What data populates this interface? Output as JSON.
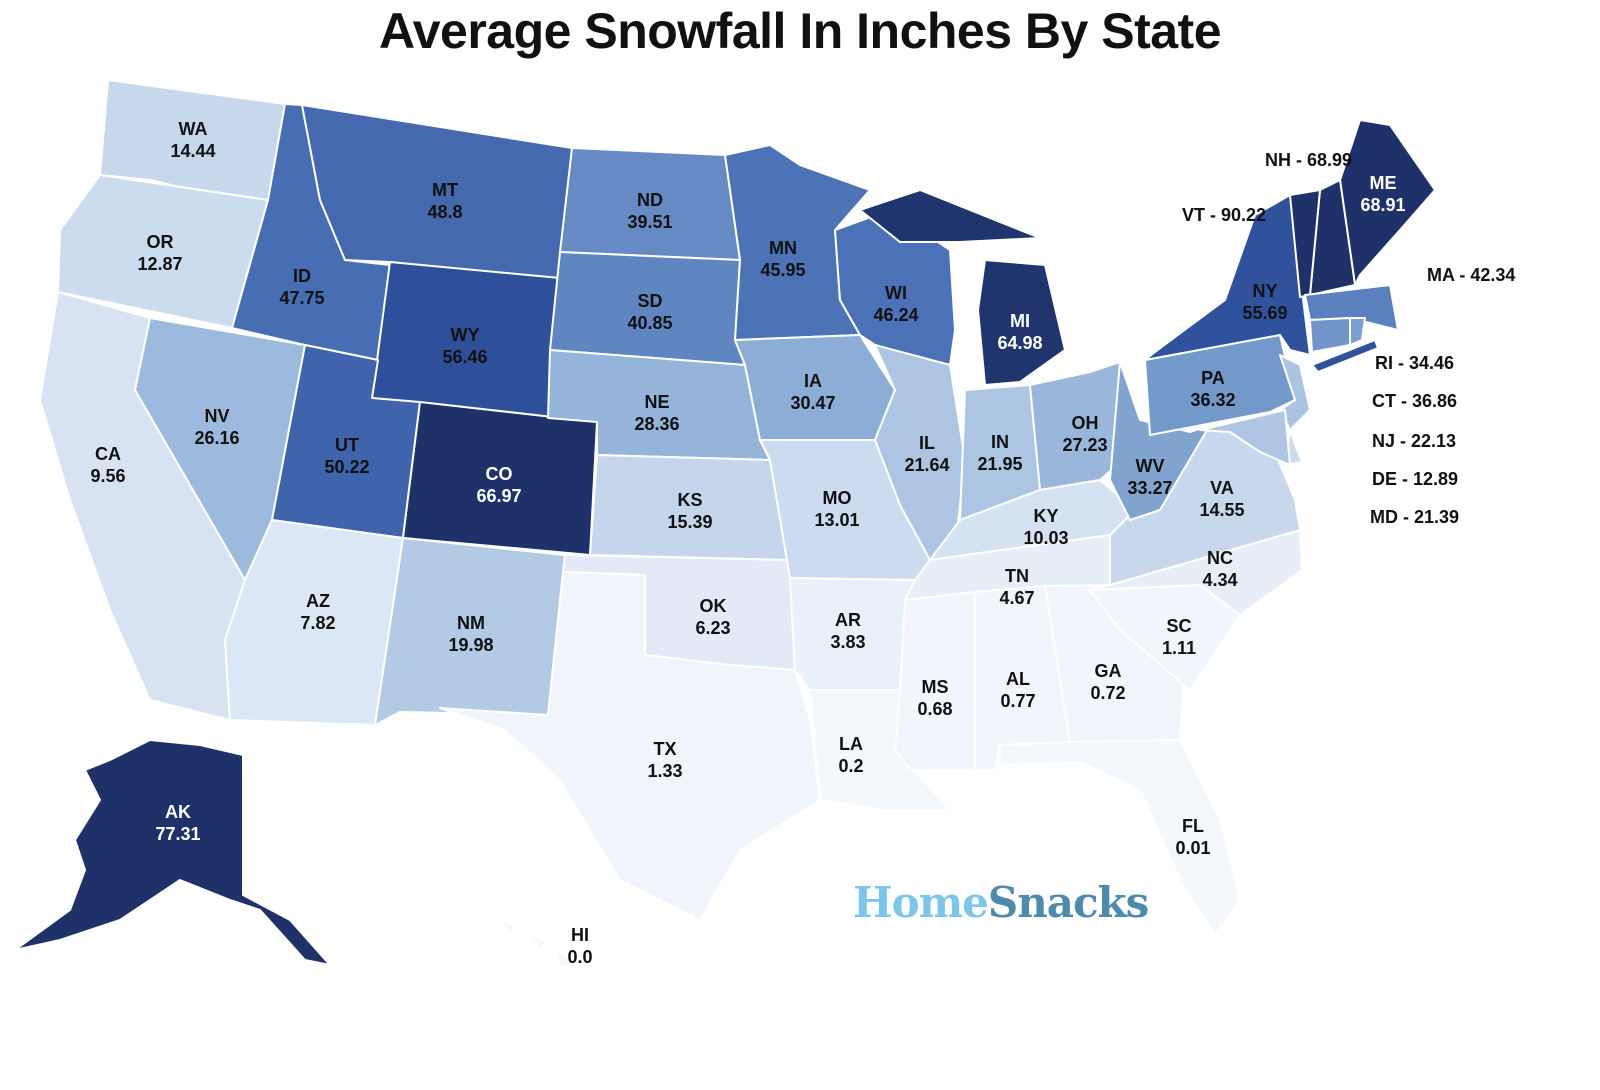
{
  "chart_data": {
    "type": "choropleth",
    "title": "Average Snowfall In Inches By State",
    "color_scale": [
      "#f4f8fd",
      "#c9d9ee",
      "#8eb0d7",
      "#4f76b9",
      "#2f519c",
      "#1e3169"
    ],
    "states": [
      {
        "code": "WA",
        "value": "14.44"
      },
      {
        "code": "OR",
        "value": "12.87"
      },
      {
        "code": "CA",
        "value": "9.56"
      },
      {
        "code": "NV",
        "value": "26.16"
      },
      {
        "code": "ID",
        "value": "47.75"
      },
      {
        "code": "MT",
        "value": "48.8"
      },
      {
        "code": "WY",
        "value": "56.46"
      },
      {
        "code": "UT",
        "value": "50.22"
      },
      {
        "code": "CO",
        "value": "66.97"
      },
      {
        "code": "AZ",
        "value": "7.82"
      },
      {
        "code": "NM",
        "value": "19.98"
      },
      {
        "code": "ND",
        "value": "39.51"
      },
      {
        "code": "SD",
        "value": "40.85"
      },
      {
        "code": "NE",
        "value": "28.36"
      },
      {
        "code": "KS",
        "value": "15.39"
      },
      {
        "code": "OK",
        "value": "6.23"
      },
      {
        "code": "TX",
        "value": "1.33"
      },
      {
        "code": "MN",
        "value": "45.95"
      },
      {
        "code": "IA",
        "value": "30.47"
      },
      {
        "code": "MO",
        "value": "13.01"
      },
      {
        "code": "AR",
        "value": "3.83"
      },
      {
        "code": "LA",
        "value": "0.2"
      },
      {
        "code": "WI",
        "value": "46.24"
      },
      {
        "code": "IL",
        "value": "21.64"
      },
      {
        "code": "MI",
        "value": "64.98"
      },
      {
        "code": "IN",
        "value": "21.95"
      },
      {
        "code": "OH",
        "value": "27.23"
      },
      {
        "code": "KY",
        "value": "10.03"
      },
      {
        "code": "TN",
        "value": "4.67"
      },
      {
        "code": "MS",
        "value": "0.68"
      },
      {
        "code": "AL",
        "value": "0.77"
      },
      {
        "code": "GA",
        "value": "0.72"
      },
      {
        "code": "FL",
        "value": "0.01"
      },
      {
        "code": "SC",
        "value": "1.11"
      },
      {
        "code": "NC",
        "value": "4.34"
      },
      {
        "code": "VA",
        "value": "14.55"
      },
      {
        "code": "WV",
        "value": "33.27"
      },
      {
        "code": "PA",
        "value": "36.32"
      },
      {
        "code": "NY",
        "value": "55.69"
      },
      {
        "code": "ME",
        "value": "68.91"
      },
      {
        "code": "AK",
        "value": "77.31"
      },
      {
        "code": "HI",
        "value": "0.0"
      },
      {
        "code": "NH",
        "value": "68.99",
        "callout": true
      },
      {
        "code": "VT",
        "value": "90.22",
        "callout": true
      },
      {
        "code": "MA",
        "value": "42.34",
        "callout": true
      },
      {
        "code": "RI",
        "value": "34.46",
        "callout": true
      },
      {
        "code": "CT",
        "value": "36.86",
        "callout": true
      },
      {
        "code": "NJ",
        "value": "22.13",
        "callout": true
      },
      {
        "code": "DE",
        "value": "12.89",
        "callout": true
      },
      {
        "code": "MD",
        "value": "21.39",
        "callout": true
      }
    ]
  },
  "logo": {
    "part1": "Home",
    "part2": "Snacks"
  }
}
